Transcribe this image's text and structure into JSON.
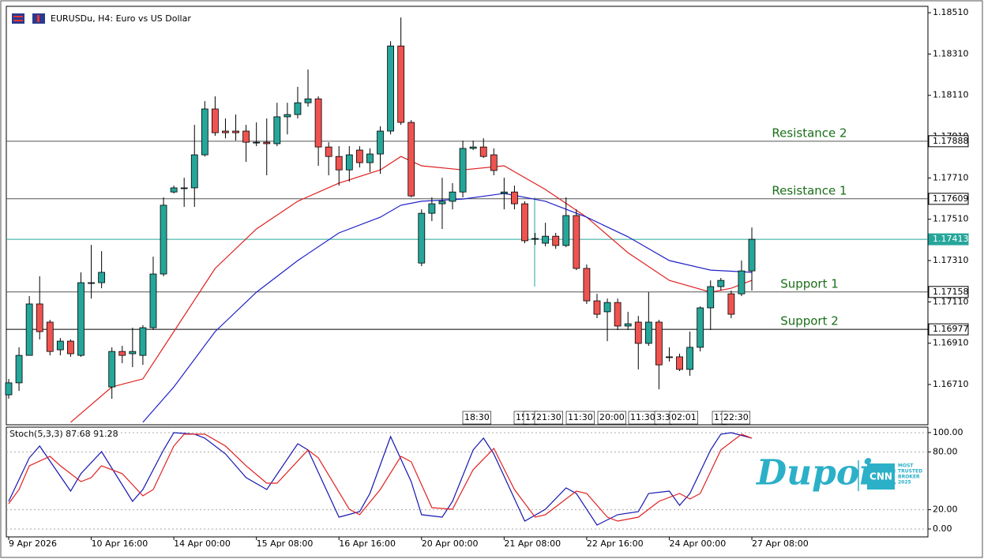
{
  "chart_data": [
    {
      "type": "candlestick",
      "title": "EURUSDu, H4:  Euro vs US Dollar",
      "up_color": "#26a69a",
      "down_color": "#ef5350",
      "open": [
        1.1666,
        1.16718,
        1.16851,
        1.171,
        1.17012,
        1.16878,
        1.1692,
        1.16851,
        1.17203,
        1.17203,
        1.16698,
        1.1687,
        1.16859,
        1.16851,
        1.16985,
        1.17245,
        1.17642,
        1.17662,
        1.17662,
        1.17822,
        1.18044,
        1.17937,
        1.17937,
        1.17937,
        1.17883,
        1.17883,
        1.17876,
        1.18006,
        1.18017,
        1.18074,
        1.18093,
        1.1786,
        1.17814,
        1.17749,
        1.17845,
        1.17784,
        1.17826,
        1.17937,
        1.18349,
        1.17979,
        1.17298,
        1.17539,
        1.17585,
        1.17597,
        1.17642,
        1.17853,
        1.1786,
        1.17822,
        1.17635,
        1.17642,
        1.17585,
        1.17417,
        1.17394,
        1.17428,
        1.17383,
        1.17528,
        1.17272,
        1.17115,
        1.17062,
        1.17107,
        1.16993,
        1.17012,
        1.16909,
        1.17012,
        1.16844,
        1.16844,
        1.16783,
        1.1689,
        1.17081,
        1.17184,
        1.17149,
        1.17149,
        1.1726
      ],
      "high": [
        1.16737,
        1.1689,
        1.17138,
        1.17234,
        1.17023,
        1.16935,
        1.16928,
        1.17253,
        1.17386,
        1.17356,
        1.1689,
        1.16897,
        1.16985,
        1.16997,
        1.17329,
        1.17616,
        1.17673,
        1.17711,
        1.17967,
        1.18082,
        1.18105,
        1.17998,
        1.18017,
        1.17967,
        1.17979,
        1.17998,
        1.18074,
        1.18074,
        1.18151,
        1.18235,
        1.18105,
        1.17883,
        1.17864,
        1.17864,
        1.17864,
        1.17853,
        1.1796,
        1.18372,
        1.18487,
        1.1799,
        1.17558,
        1.17616,
        1.17711,
        1.17685,
        1.17891,
        1.17891,
        1.17902,
        1.17853,
        1.17711,
        1.17673,
        1.17597,
        1.17444,
        1.17493,
        1.17444,
        1.17616,
        1.17558,
        1.17291,
        1.17149,
        1.17126,
        1.17126,
        1.17062,
        1.17042,
        1.17157,
        1.17023,
        1.1689,
        1.16859,
        1.16966,
        1.17088,
        1.17214,
        1.17226,
        1.17165,
        1.1731,
        1.1747
      ],
      "low": [
        1.16641,
        1.16679,
        1.16851,
        1.16928,
        1.16851,
        1.16851,
        1.16844,
        1.16844,
        1.17126,
        1.17176,
        1.16641,
        1.16813,
        1.16794,
        1.16805,
        1.16974,
        1.17234,
        1.17635,
        1.1757,
        1.1757,
        1.17814,
        1.17914,
        1.17902,
        1.17891,
        1.17788,
        1.17864,
        1.17723,
        1.17864,
        1.17921,
        1.17998,
        1.18055,
        1.17769,
        1.17723,
        1.17673,
        1.17692,
        1.17761,
        1.17738,
        1.1773,
        1.17921,
        1.17967,
        1.17616,
        1.17283,
        1.17501,
        1.17463,
        1.17558,
        1.17616,
        1.17845,
        1.17807,
        1.17723,
        1.17558,
        1.17558,
        1.17394,
        1.17386,
        1.17379,
        1.17367,
        1.17375,
        1.17264,
        1.171,
        1.17031,
        1.1692,
        1.16974,
        1.16974,
        1.16783,
        1.16897,
        1.16687,
        1.16821,
        1.16775,
        1.16752,
        1.1687,
        1.16974,
        1.17165,
        1.17031,
        1.17138,
        1.17165
      ],
      "close": [
        1.16718,
        1.16851,
        1.171,
        1.16966,
        1.1687,
        1.1692,
        1.16859,
        1.17203,
        1.17203,
        1.17253,
        1.1687,
        1.16851,
        1.1687,
        1.16985,
        1.17245,
        1.17578,
        1.17662,
        1.17662,
        1.17822,
        1.18044,
        1.17929,
        1.17929,
        1.17929,
        1.17883,
        1.17883,
        1.17876,
        1.18006,
        1.18017,
        1.18074,
        1.18093,
        1.1786,
        1.17814,
        1.17749,
        1.17822,
        1.17784,
        1.17826,
        1.17937,
        1.18349,
        1.17979,
        1.17623,
        1.17539,
        1.17585,
        1.17597,
        1.17642,
        1.17853,
        1.1786,
        1.17814,
        1.17746,
        1.17642,
        1.17585,
        1.17406,
        1.17417,
        1.17428,
        1.17383,
        1.17528,
        1.17272,
        1.17115,
        1.1705,
        1.17107,
        1.16993,
        1.17004,
        1.16909,
        1.17012,
        1.16805,
        1.16844,
        1.16783,
        1.1689,
        1.17081,
        1.17184,
        1.17214,
        1.1705,
        1.1726,
        1.17413
      ],
      "series": [
        {
          "color": "#e02020",
          "x": [
            6,
            10,
            13,
            16,
            20,
            24,
            28,
            32,
            36,
            38,
            40,
            44,
            48,
            52,
            56,
            60,
            64,
            68,
            70,
            72
          ],
          "values": [
            1.16527,
            1.16698,
            1.16737,
            1.16966,
            1.17272,
            1.17463,
            1.17597,
            1.17685,
            1.17749,
            1.17814,
            1.17769,
            1.17749,
            1.17769,
            1.17654,
            1.1752,
            1.17348,
            1.17214,
            1.17157,
            1.17176,
            1.17214
          ]
        },
        {
          "color": "#2020c8",
          "x": [
            13,
            16,
            20,
            24,
            28,
            32,
            36,
            38,
            40,
            44,
            48,
            52,
            56,
            60,
            64,
            68,
            72
          ],
          "values": [
            1.16527,
            1.16698,
            1.16966,
            1.17157,
            1.1731,
            1.17444,
            1.1752,
            1.17578,
            1.17597,
            1.17608,
            1.17635,
            1.17597,
            1.1752,
            1.17425,
            1.1731,
            1.17264,
            1.17253
          ]
        }
      ],
      "levels": [
        {
          "name": "Resistance 2",
          "value": 1.17888,
          "color": "#555555"
        },
        {
          "name": "Resistance 1",
          "value": 1.17609,
          "color": "#555555"
        },
        {
          "value": 1.17413,
          "color": "#26a69a",
          "current": true
        },
        {
          "name": "Support 1",
          "value": 1.17158,
          "color": "#555555"
        },
        {
          "name": "Support 2",
          "value": 1.16977,
          "color": "#000000"
        }
      ],
      "xlim": [
        -0.23,
        89.06
      ],
      "ylim": [
        1.16515,
        1.18541
      ],
      "yticks": [
        {
          "value": 1.1851,
          "label": "1.18510"
        },
        {
          "value": 1.1831,
          "label": "1.18310"
        },
        {
          "value": 1.1811,
          "label": "1.18110"
        },
        {
          "value": 1.1791,
          "label": "1.17910"
        },
        {
          "value": 1.1771,
          "label": "1.17710"
        },
        {
          "value": 1.1751,
          "label": "1.17510"
        },
        {
          "value": 1.1731,
          "label": "1.17310"
        },
        {
          "value": 1.1711,
          "label": "1.17110"
        },
        {
          "value": 1.1691,
          "label": "1.16910"
        },
        {
          "value": 1.1671,
          "label": "1.16710"
        }
      ],
      "xticks": [
        {
          "value": 0,
          "label": "9 Apr 2026"
        },
        {
          "value": 8,
          "label": "10 Apr 16:00"
        },
        {
          "value": 16,
          "label": "14 Apr 00:00"
        },
        {
          "value": 24,
          "label": "15 Apr 08:00"
        },
        {
          "value": 32,
          "label": "16 Apr 16:00"
        },
        {
          "value": 40,
          "label": "20 Apr 00:00"
        },
        {
          "value": 48,
          "label": "21 Apr 08:00"
        },
        {
          "value": 56,
          "label": "22 Apr 16:00"
        },
        {
          "value": 64,
          "label": "24 Apr 00:00"
        },
        {
          "value": 72,
          "label": "27 Apr 08:00"
        }
      ],
      "time_tags": [
        "18:30",
        "15",
        "17",
        "21:30",
        "11:30",
        "20:00",
        "11:30",
        "3:3",
        "02:01",
        "17",
        "22:30"
      ]
    },
    {
      "type": "line",
      "title": "Stoch(5,3,3) 87.68 91.28",
      "series": [
        {
          "color": "#1515b0",
          "x": [
            0,
            2,
            3,
            6,
            7,
            9,
            12,
            13,
            15,
            16,
            18,
            19,
            21,
            23,
            25,
            28,
            29,
            32,
            34,
            35,
            37,
            39,
            40,
            42,
            43,
            45,
            46,
            47,
            50,
            52,
            54,
            55,
            57,
            59,
            61,
            62,
            64,
            65,
            66,
            68,
            69,
            70,
            72
          ],
          "values": [
            28.7,
            73.8,
            86.1,
            39.3,
            57.4,
            80.3,
            28.7,
            41,
            82,
            100,
            98.4,
            94.3,
            77.9,
            53.3,
            41,
            88.5,
            82,
            12.3,
            18,
            36.9,
            95.9,
            49.2,
            14.8,
            12.3,
            28.7,
            82,
            94.3,
            77.9,
            8.2,
            20.5,
            42.6,
            36.9,
            4.1,
            14.8,
            18,
            36.9,
            39.3,
            24.6,
            36.9,
            82,
            98.4,
            100,
            94.3
          ]
        },
        {
          "color": "#e02020",
          "x": [
            0,
            1,
            2,
            4,
            5,
            7,
            8,
            9,
            11,
            13,
            14,
            16,
            17,
            19,
            21,
            23,
            25,
            26,
            29,
            30,
            33,
            34,
            36,
            38,
            39,
            41,
            43,
            45,
            47,
            49,
            51,
            52,
            55,
            56,
            58,
            59,
            61,
            63,
            65,
            66,
            67,
            69,
            71,
            72
          ],
          "values": [
            26.2,
            41,
            65.6,
            75.4,
            65.6,
            49.2,
            53.3,
            65.6,
            57.4,
            34.4,
            41,
            86.1,
            98.4,
            98.4,
            86.1,
            65.6,
            47.5,
            47.5,
            82,
            73.8,
            20.5,
            14.8,
            41,
            75.4,
            69.7,
            22.1,
            20.5,
            61.5,
            83.6,
            41,
            12.3,
            14.8,
            39.3,
            36.9,
            12.3,
            8.2,
            12.3,
            28.7,
            36.9,
            31.1,
            36.9,
            82,
            98.4,
            94.3
          ]
        }
      ],
      "xlim": [
        -0.23,
        89.06
      ],
      "ylim": [
        -8.2,
        105.7
      ],
      "yticks": [
        {
          "value": 100,
          "label": "100.00"
        },
        {
          "value": 80,
          "label": "80.00"
        },
        {
          "value": 20,
          "label": "20.00"
        },
        {
          "value": 0,
          "label": "0.00"
        }
      ]
    }
  ],
  "watermark": {
    "brand": "Dupoin",
    "badge": "CNN",
    "badge_text": [
      "MOST",
      "TRUSTED",
      "BROKER",
      "2025"
    ]
  }
}
